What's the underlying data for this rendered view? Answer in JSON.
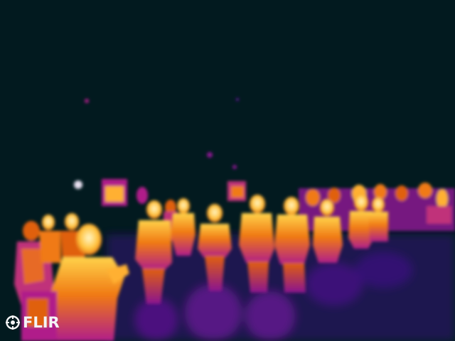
{
  "image": {
    "palette": {
      "background": "#021a1f",
      "cool": "#4a0aa0",
      "mid": "#b01e8a",
      "warm": "#f07a14",
      "hot": "#ffd24a",
      "hottest": "#fff6c8"
    }
  },
  "logo": {
    "text": "FLIR",
    "icon": "flir-logo-icon"
  }
}
